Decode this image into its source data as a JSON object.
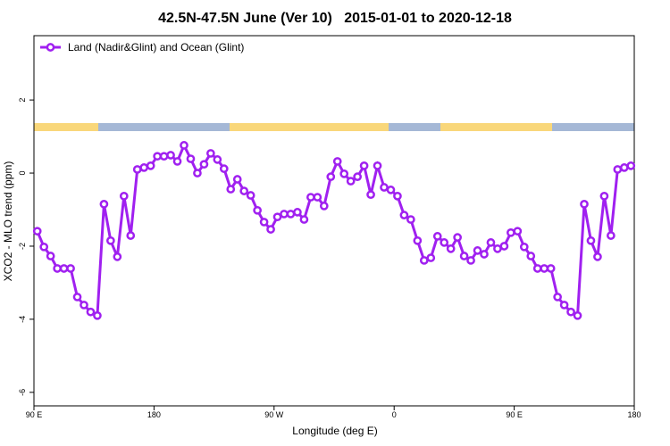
{
  "chart_data": {
    "type": "line",
    "title": "42.5N-47.5N June (Ver 10)   2015-01-01 to 2020-12-18",
    "x_label": "Longitude (deg E)",
    "y_label": "XCO2 - MLO trend (ppm)",
    "x": [
      92.5,
      97.5,
      102.5,
      107.5,
      112.5,
      117.5,
      122.5,
      127.5,
      132.5,
      137.5,
      142.5,
      147.5,
      152.5,
      157.5,
      162.5,
      167.5,
      172.5,
      177.5,
      182.5,
      187.5,
      192.5,
      197.5,
      202.5,
      207.5,
      212.5,
      217.5,
      222.5,
      227.5,
      232.5,
      237.5,
      242.5,
      247.5,
      252.5,
      257.5,
      262.5,
      267.5,
      272.5,
      277.5,
      282.5,
      287.5,
      292.5,
      297.5,
      302.5,
      307.5,
      312.5,
      317.5,
      322.5,
      327.5,
      332.5,
      337.5,
      342.5,
      347.5,
      352.5,
      357.5,
      362.5,
      367.5,
      372.5,
      377.5,
      382.5,
      387.5,
      392.5,
      397.5,
      402.5,
      407.5,
      412.5,
      417.5,
      422.5,
      427.5,
      432.5,
      437.5,
      442.5,
      447.5,
      452.5,
      457.5,
      462.5,
      467.5,
      472.5,
      477.5,
      482.5,
      487.5,
      492.5,
      497.5,
      502.5,
      507.5,
      512.5,
      517.5,
      522.5,
      527.5,
      532.5,
      537.5
    ],
    "series": [
      {
        "name": "Land (Nadir&Glint) and Ocean (Glint)",
        "color": "#a020f0",
        "values": [
          -1.59,
          -2.02,
          -2.27,
          -2.61,
          -2.61,
          -2.61,
          -3.39,
          -3.61,
          -3.8,
          -3.9,
          -0.85,
          -1.85,
          -2.29,
          -0.63,
          -1.71,
          0.1,
          0.15,
          0.2,
          0.46,
          0.46,
          0.49,
          0.32,
          0.76,
          0.39,
          0.0,
          0.24,
          0.54,
          0.37,
          0.12,
          -0.44,
          -0.17,
          -0.49,
          -0.61,
          -1.02,
          -1.34,
          -1.54,
          -1.2,
          -1.12,
          -1.12,
          -1.07,
          -1.27,
          -0.66,
          -0.66,
          -0.9,
          -0.1,
          0.32,
          -0.02,
          -0.22,
          -0.1,
          0.2,
          -0.59,
          0.2,
          -0.39,
          -0.46,
          -0.63,
          -1.15,
          -1.27,
          -1.85,
          -2.39,
          -2.32,
          -1.73,
          -1.9,
          -2.07,
          -1.76,
          -2.27,
          -2.39,
          -2.12,
          -2.22,
          -1.9,
          -2.07,
          -2.0,
          -1.63,
          -1.59,
          -2.02,
          -2.27,
          -2.61,
          -2.61,
          -2.61,
          -3.39,
          -3.61,
          -3.8,
          -3.9,
          -0.85,
          -1.85,
          -2.29,
          -0.63,
          -1.71,
          0.1,
          0.15,
          0.2
        ]
      }
    ],
    "xlim": [
      90,
      540
    ],
    "xticks": [
      {
        "value": 90,
        "label": "90 E"
      },
      180,
      {
        "value": 270,
        "label": "90 W"
      },
      {
        "value": 360,
        "label": "0"
      },
      {
        "value": 450,
        "label": "90 E"
      },
      {
        "value": 540,
        "label": "180"
      }
    ],
    "ylim": [
      -6.37,
      3.76
    ],
    "yticks": [
      -6,
      -4,
      -2,
      0,
      2
    ],
    "legend": "top-left"
  }
}
